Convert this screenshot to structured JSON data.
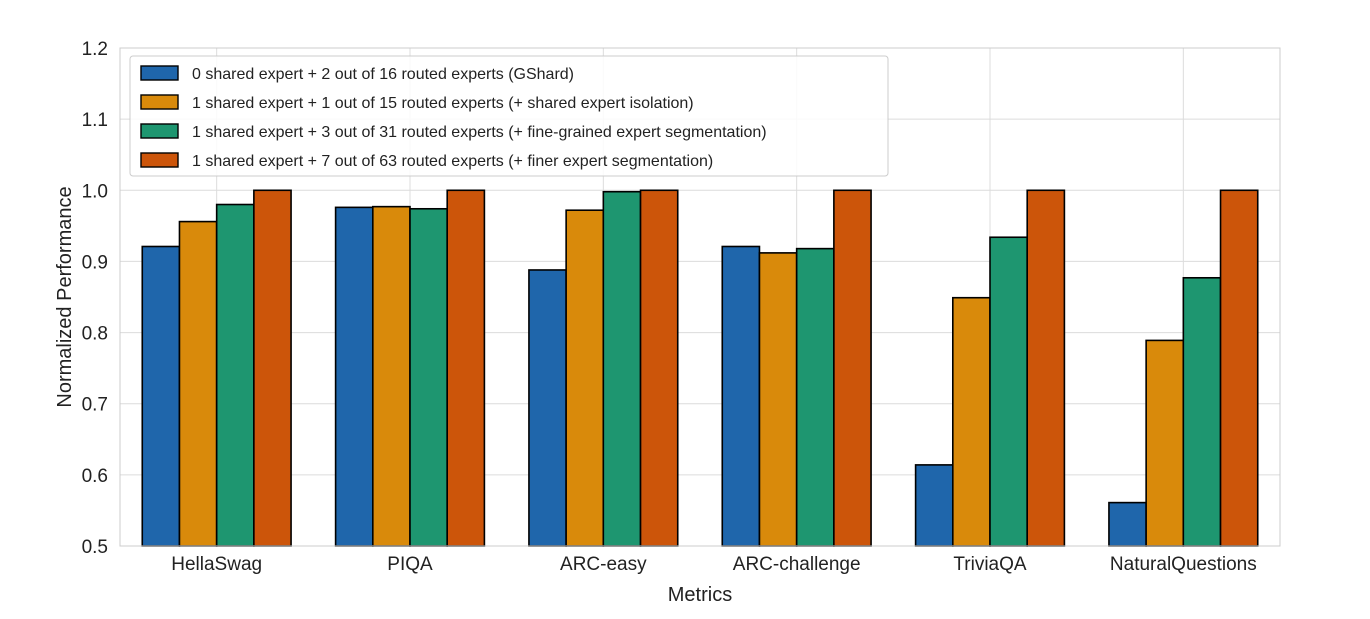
{
  "chart_data": {
    "type": "bar",
    "title": "",
    "xlabel": "Metrics",
    "ylabel": "Normalized Performance",
    "ylim": [
      0.5,
      1.2
    ],
    "yticks": [
      0.5,
      0.6,
      0.7,
      0.8,
      0.9,
      1.0,
      1.1,
      1.2
    ],
    "ytick_labels": [
      "0.5",
      "0.6",
      "0.7",
      "0.8",
      "0.9",
      "1.0",
      "1.1",
      "1.2"
    ],
    "grid": true,
    "legend_position": "top-left",
    "categories": [
      "HellaSwag",
      "PIQA",
      "ARC-easy",
      "ARC-challenge",
      "TriviaQA",
      "NaturalQuestions"
    ],
    "series": [
      {
        "name": "0 shared expert + 2 out of 16 routed experts (GShard)",
        "color": "#1f66ab",
        "values": [
          0.921,
          0.976,
          0.888,
          0.921,
          0.614,
          0.561
        ]
      },
      {
        "name": "1 shared expert + 1 out of 15 routed experts (+ shared expert isolation)",
        "color": "#d98a0b",
        "values": [
          0.956,
          0.977,
          0.972,
          0.912,
          0.849,
          0.789
        ]
      },
      {
        "name": "1 shared expert + 3 out of 31 routed experts (+ fine-grained expert segmentation)",
        "color": "#1e9670",
        "values": [
          0.98,
          0.974,
          0.998,
          0.918,
          0.934,
          0.877
        ]
      },
      {
        "name": "1 shared expert + 7 out of 63 routed experts (+ finer expert segmentation)",
        "color": "#cc550a",
        "values": [
          1.0,
          1.0,
          1.0,
          1.0,
          1.0,
          1.0
        ]
      }
    ]
  }
}
